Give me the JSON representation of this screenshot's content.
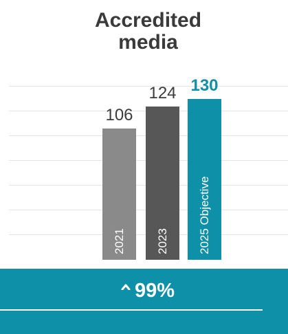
{
  "chart_data": {
    "type": "bar",
    "title": "Accredited\nmedia",
    "categories": [
      "2021",
      "2023",
      "2025 Objective"
    ],
    "values": [
      106,
      124,
      130
    ],
    "colors": [
      "#8a8a8a",
      "#575757",
      "#0e90a8"
    ],
    "highlight": [
      false,
      false,
      true
    ],
    "grid": true
  },
  "footer": {
    "change_text": "99%",
    "change_icon": "caret-up-icon",
    "background": "#0e90a8"
  }
}
